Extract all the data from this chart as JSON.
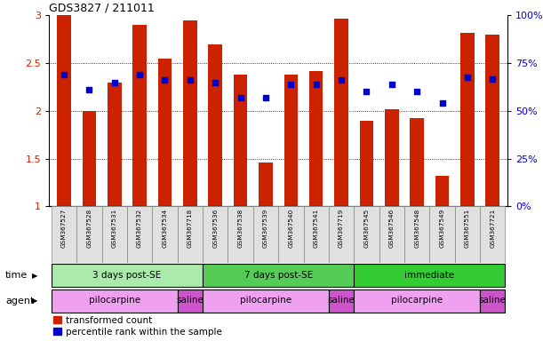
{
  "title": "GDS3827 / 211011",
  "samples": [
    "GSM367527",
    "GSM367528",
    "GSM367531",
    "GSM367532",
    "GSM367534",
    "GSM367718",
    "GSM367536",
    "GSM367538",
    "GSM367539",
    "GSM367540",
    "GSM367541",
    "GSM367719",
    "GSM367545",
    "GSM367546",
    "GSM367548",
    "GSM367549",
    "GSM367551",
    "GSM367721"
  ],
  "bar_values": [
    3.0,
    2.0,
    2.3,
    2.9,
    2.55,
    2.95,
    2.7,
    2.38,
    1.46,
    2.38,
    2.42,
    2.97,
    1.9,
    2.02,
    1.92,
    1.32,
    2.82,
    2.8
  ],
  "blue_values": [
    2.38,
    2.22,
    2.3,
    2.38,
    2.32,
    2.32,
    2.3,
    2.14,
    2.14,
    2.28,
    2.28,
    2.32,
    2.2,
    2.28,
    2.2,
    2.08,
    2.35,
    2.33
  ],
  "bar_color": "#cc2200",
  "blue_color": "#0000cc",
  "ylim": [
    1.0,
    3.0
  ],
  "yticks_left": [
    1.0,
    1.5,
    2.0,
    2.5,
    3.0
  ],
  "ytick_labels_left": [
    "1",
    "1.5",
    "2",
    "2.5",
    "3"
  ],
  "yticks_right": [
    0,
    25,
    50,
    75,
    100
  ],
  "ytick_labels_right": [
    "0%",
    "25%",
    "50%",
    "75%",
    "100%"
  ],
  "time_groups": [
    {
      "label": "3 days post-SE",
      "start": 0,
      "end": 5,
      "color": "#aaeaaa"
    },
    {
      "label": "7 days post-SE",
      "start": 6,
      "end": 11,
      "color": "#55cc55"
    },
    {
      "label": "immediate",
      "start": 12,
      "end": 17,
      "color": "#33cc33"
    }
  ],
  "agent_groups": [
    {
      "label": "pilocarpine",
      "start": 0,
      "end": 4,
      "color": "#f0a0f0"
    },
    {
      "label": "saline",
      "start": 5,
      "end": 5,
      "color": "#cc55cc"
    },
    {
      "label": "pilocarpine",
      "start": 6,
      "end": 10,
      "color": "#f0a0f0"
    },
    {
      "label": "saline",
      "start": 11,
      "end": 11,
      "color": "#cc55cc"
    },
    {
      "label": "pilocarpine",
      "start": 12,
      "end": 16,
      "color": "#f0a0f0"
    },
    {
      "label": "saline",
      "start": 17,
      "end": 17,
      "color": "#cc55cc"
    }
  ],
  "legend_items": [
    {
      "label": "transformed count",
      "color": "#cc2200"
    },
    {
      "label": "percentile rank within the sample",
      "color": "#0000cc"
    }
  ],
  "time_label": "time",
  "agent_label": "agent",
  "bar_width": 0.55
}
